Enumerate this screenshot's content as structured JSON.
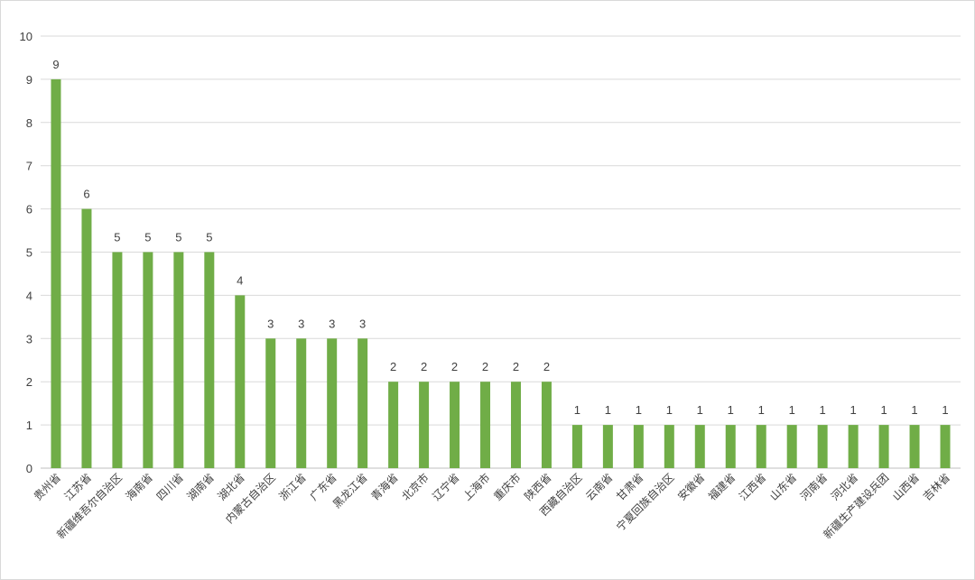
{
  "chart_data": {
    "type": "bar",
    "title": "",
    "xlabel": "",
    "ylabel": "",
    "ylim": [
      0,
      10
    ],
    "yticks": [
      0,
      1,
      2,
      3,
      4,
      5,
      6,
      7,
      8,
      9,
      10
    ],
    "grid": true,
    "legend": "none",
    "bar_color": "#70ad47",
    "categories": [
      "贵州省",
      "江苏省",
      "新疆维吾尔自治区",
      "海南省",
      "四川省",
      "湖南省",
      "湖北省",
      "内蒙古自治区",
      "浙江省",
      "广东省",
      "黑龙江省",
      "青海省",
      "北京市",
      "辽宁省",
      "上海市",
      "重庆市",
      "陕西省",
      "西藏自治区",
      "云南省",
      "甘肃省",
      "宁夏回族自治区",
      "安徽省",
      "福建省",
      "江西省",
      "山东省",
      "河南省",
      "河北省",
      "新疆生产建设兵团",
      "山西省",
      "吉林省"
    ],
    "values": [
      9,
      6,
      5,
      5,
      5,
      5,
      4,
      3,
      3,
      3,
      3,
      2,
      2,
      2,
      2,
      2,
      2,
      1,
      1,
      1,
      1,
      1,
      1,
      1,
      1,
      1,
      1,
      1,
      1,
      1
    ]
  }
}
